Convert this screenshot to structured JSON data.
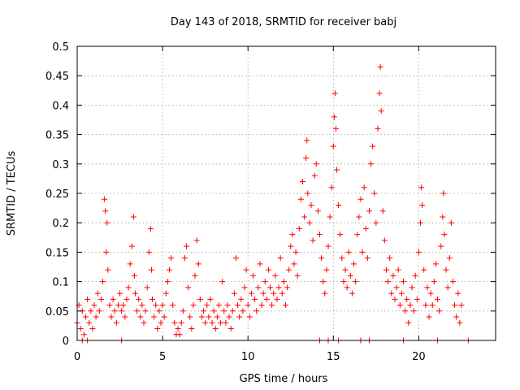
{
  "chart_data": {
    "type": "scatter",
    "title": "Day 143 of 2018, SRMTID for receiver babj",
    "xlabel": "GPS time / hours",
    "ylabel": "SRMTID / TECUs",
    "xlim": [
      0,
      24.5
    ],
    "ylim": [
      0,
      0.5
    ],
    "grid": true,
    "marker": "+",
    "series_color": "#ff0000",
    "x_ticks": [
      {
        "value": 0,
        "label": "0"
      },
      {
        "value": 5,
        "label": "5"
      },
      {
        "value": 10,
        "label": "10"
      },
      {
        "value": 15,
        "label": "15"
      },
      {
        "value": 20,
        "label": "20"
      }
    ],
    "y_ticks": [
      {
        "value": 0,
        "label": "0"
      },
      {
        "value": 0.05,
        "label": "0.05"
      },
      {
        "value": 0.1,
        "label": "0.1"
      },
      {
        "value": 0.15,
        "label": "0.15"
      },
      {
        "value": 0.2,
        "label": "0.2"
      },
      {
        "value": 0.25,
        "label": "0.25"
      },
      {
        "value": 0.3,
        "label": "0.3"
      },
      {
        "value": 0.35,
        "label": "0.35"
      },
      {
        "value": 0.4,
        "label": "0.4"
      },
      {
        "value": 0.45,
        "label": "0.45"
      },
      {
        "value": 0.5,
        "label": "0.5"
      }
    ],
    "series": [
      {
        "name": "SRMTID",
        "points": [
          [
            0.0,
            0.03
          ],
          [
            0.1,
            0.06
          ],
          [
            0.2,
            0.02
          ],
          [
            0.3,
            0.05
          ],
          [
            0.4,
            0.01
          ],
          [
            0.5,
            0.04
          ],
          [
            0.6,
            0.07
          ],
          [
            0.7,
            0.03
          ],
          [
            0.8,
            0.05
          ],
          [
            0.9,
            0.02
          ],
          [
            1.0,
            0.06
          ],
          [
            1.1,
            0.04
          ],
          [
            1.2,
            0.08
          ],
          [
            1.3,
            0.05
          ],
          [
            1.4,
            0.07
          ],
          [
            1.5,
            0.1
          ],
          [
            1.6,
            0.24
          ],
          [
            1.65,
            0.22
          ],
          [
            1.7,
            0.15
          ],
          [
            1.75,
            0.2
          ],
          [
            1.8,
            0.12
          ],
          [
            1.9,
            0.06
          ],
          [
            2.0,
            0.04
          ],
          [
            2.1,
            0.07
          ],
          [
            2.2,
            0.05
          ],
          [
            2.3,
            0.03
          ],
          [
            2.4,
            0.06
          ],
          [
            2.5,
            0.08
          ],
          [
            2.6,
            0.05
          ],
          [
            2.7,
            0.06
          ],
          [
            2.8,
            0.04
          ],
          [
            2.9,
            0.07
          ],
          [
            3.0,
            0.09
          ],
          [
            3.1,
            0.13
          ],
          [
            3.2,
            0.16
          ],
          [
            3.3,
            0.21
          ],
          [
            3.35,
            0.11
          ],
          [
            3.4,
            0.08
          ],
          [
            3.5,
            0.05
          ],
          [
            3.6,
            0.07
          ],
          [
            3.7,
            0.04
          ],
          [
            3.8,
            0.06
          ],
          [
            3.9,
            0.03
          ],
          [
            4.0,
            0.05
          ],
          [
            4.1,
            0.09
          ],
          [
            4.2,
            0.15
          ],
          [
            4.3,
            0.19
          ],
          [
            4.35,
            0.12
          ],
          [
            4.4,
            0.07
          ],
          [
            4.5,
            0.04
          ],
          [
            4.6,
            0.06
          ],
          [
            4.7,
            0.02
          ],
          [
            4.8,
            0.05
          ],
          [
            4.9,
            0.03
          ],
          [
            5.0,
            0.06
          ],
          [
            5.1,
            0.04
          ],
          [
            5.2,
            0.08
          ],
          [
            5.3,
            0.1
          ],
          [
            5.4,
            0.12
          ],
          [
            5.5,
            0.14
          ],
          [
            5.6,
            0.06
          ],
          [
            5.7,
            0.03
          ],
          [
            5.8,
            0.01
          ],
          [
            5.9,
            0.02
          ],
          [
            6.0,
            0.01
          ],
          [
            6.1,
            0.03
          ],
          [
            6.2,
            0.05
          ],
          [
            6.3,
            0.14
          ],
          [
            6.4,
            0.16
          ],
          [
            6.5,
            0.09
          ],
          [
            6.6,
            0.04
          ],
          [
            6.7,
            0.02
          ],
          [
            6.8,
            0.06
          ],
          [
            6.9,
            0.11
          ],
          [
            7.0,
            0.17
          ],
          [
            7.1,
            0.13
          ],
          [
            7.2,
            0.07
          ],
          [
            7.3,
            0.04
          ],
          [
            7.4,
            0.05
          ],
          [
            7.5,
            0.03
          ],
          [
            7.6,
            0.06
          ],
          [
            7.7,
            0.04
          ],
          [
            7.8,
            0.07
          ],
          [
            7.9,
            0.03
          ],
          [
            8.0,
            0.05
          ],
          [
            8.1,
            0.02
          ],
          [
            8.2,
            0.04
          ],
          [
            8.3,
            0.06
          ],
          [
            8.4,
            0.03
          ],
          [
            8.5,
            0.1
          ],
          [
            8.6,
            0.05
          ],
          [
            8.7,
            0.03
          ],
          [
            8.8,
            0.06
          ],
          [
            8.9,
            0.04
          ],
          [
            9.0,
            0.02
          ],
          [
            9.1,
            0.05
          ],
          [
            9.2,
            0.08
          ],
          [
            9.3,
            0.14
          ],
          [
            9.4,
            0.06
          ],
          [
            9.5,
            0.04
          ],
          [
            9.6,
            0.07
          ],
          [
            9.7,
            0.05
          ],
          [
            9.8,
            0.09
          ],
          [
            9.9,
            0.12
          ],
          [
            10.0,
            0.06
          ],
          [
            10.1,
            0.04
          ],
          [
            10.2,
            0.08
          ],
          [
            10.3,
            0.11
          ],
          [
            10.4,
            0.07
          ],
          [
            10.5,
            0.05
          ],
          [
            10.6,
            0.09
          ],
          [
            10.7,
            0.13
          ],
          [
            10.8,
            0.06
          ],
          [
            10.9,
            0.08
          ],
          [
            11.0,
            0.1
          ],
          [
            11.1,
            0.07
          ],
          [
            11.2,
            0.12
          ],
          [
            11.3,
            0.09
          ],
          [
            11.4,
            0.06
          ],
          [
            11.5,
            0.08
          ],
          [
            11.6,
            0.11
          ],
          [
            11.7,
            0.07
          ],
          [
            11.8,
            0.09
          ],
          [
            11.9,
            0.14
          ],
          [
            12.0,
            0.08
          ],
          [
            12.1,
            0.1
          ],
          [
            12.2,
            0.06
          ],
          [
            12.3,
            0.09
          ],
          [
            12.4,
            0.12
          ],
          [
            12.5,
            0.16
          ],
          [
            12.6,
            0.18
          ],
          [
            12.7,
            0.13
          ],
          [
            12.8,
            0.15
          ],
          [
            12.9,
            0.11
          ],
          [
            13.0,
            0.19
          ],
          [
            13.1,
            0.24
          ],
          [
            13.2,
            0.27
          ],
          [
            13.3,
            0.21
          ],
          [
            13.4,
            0.31
          ],
          [
            13.45,
            0.34
          ],
          [
            13.5,
            0.25
          ],
          [
            13.6,
            0.2
          ],
          [
            13.7,
            0.23
          ],
          [
            13.8,
            0.17
          ],
          [
            13.9,
            0.28
          ],
          [
            14.0,
            0.3
          ],
          [
            14.1,
            0.22
          ],
          [
            14.2,
            0.18
          ],
          [
            14.3,
            0.14
          ],
          [
            14.4,
            0.1
          ],
          [
            14.5,
            0.08
          ],
          [
            14.6,
            0.12
          ],
          [
            14.7,
            0.16
          ],
          [
            14.8,
            0.21
          ],
          [
            14.9,
            0.26
          ],
          [
            15.0,
            0.33
          ],
          [
            15.05,
            0.38
          ],
          [
            15.1,
            0.42
          ],
          [
            15.15,
            0.36
          ],
          [
            15.2,
            0.29
          ],
          [
            15.3,
            0.23
          ],
          [
            15.4,
            0.18
          ],
          [
            15.5,
            0.14
          ],
          [
            15.6,
            0.1
          ],
          [
            15.7,
            0.12
          ],
          [
            15.8,
            0.09
          ],
          [
            15.9,
            0.15
          ],
          [
            16.0,
            0.11
          ],
          [
            16.1,
            0.08
          ],
          [
            16.2,
            0.13
          ],
          [
            16.3,
            0.1
          ],
          [
            16.4,
            0.18
          ],
          [
            16.5,
            0.21
          ],
          [
            16.6,
            0.24
          ],
          [
            16.7,
            0.15
          ],
          [
            16.8,
            0.26
          ],
          [
            16.9,
            0.19
          ],
          [
            17.0,
            0.14
          ],
          [
            17.1,
            0.22
          ],
          [
            17.2,
            0.3
          ],
          [
            17.3,
            0.33
          ],
          [
            17.4,
            0.25
          ],
          [
            17.5,
            0.2
          ],
          [
            17.6,
            0.36
          ],
          [
            17.7,
            0.42
          ],
          [
            17.75,
            0.465
          ],
          [
            17.8,
            0.39
          ],
          [
            17.9,
            0.22
          ],
          [
            18.0,
            0.17
          ],
          [
            18.1,
            0.12
          ],
          [
            18.2,
            0.1
          ],
          [
            18.3,
            0.14
          ],
          [
            18.4,
            0.08
          ],
          [
            18.5,
            0.11
          ],
          [
            18.6,
            0.07
          ],
          [
            18.7,
            0.09
          ],
          [
            18.8,
            0.12
          ],
          [
            18.9,
            0.06
          ],
          [
            19.0,
            0.08
          ],
          [
            19.1,
            0.1
          ],
          [
            19.2,
            0.05
          ],
          [
            19.3,
            0.07
          ],
          [
            19.4,
            0.03
          ],
          [
            19.5,
            0.06
          ],
          [
            19.6,
            0.09
          ],
          [
            19.7,
            0.05
          ],
          [
            19.8,
            0.11
          ],
          [
            19.9,
            0.07
          ],
          [
            20.0,
            0.15
          ],
          [
            20.1,
            0.2
          ],
          [
            20.15,
            0.26
          ],
          [
            20.2,
            0.23
          ],
          [
            20.3,
            0.12
          ],
          [
            20.4,
            0.06
          ],
          [
            20.5,
            0.09
          ],
          [
            20.6,
            0.04
          ],
          [
            20.7,
            0.08
          ],
          [
            20.8,
            0.06
          ],
          [
            20.9,
            0.1
          ],
          [
            21.0,
            0.13
          ],
          [
            21.1,
            0.07
          ],
          [
            21.2,
            0.05
          ],
          [
            21.3,
            0.16
          ],
          [
            21.4,
            0.21
          ],
          [
            21.45,
            0.25
          ],
          [
            21.5,
            0.18
          ],
          [
            21.6,
            0.12
          ],
          [
            21.7,
            0.09
          ],
          [
            21.8,
            0.14
          ],
          [
            21.9,
            0.2
          ],
          [
            22.0,
            0.1
          ],
          [
            22.1,
            0.06
          ],
          [
            22.2,
            0.04
          ],
          [
            22.3,
            0.08
          ],
          [
            22.4,
            0.03
          ],
          [
            22.5,
            0.06
          ],
          [
            0.3,
            0.0
          ],
          [
            0.6,
            0.0
          ],
          [
            2.6,
            0.0
          ],
          [
            14.2,
            0.0
          ],
          [
            14.7,
            0.0
          ],
          [
            15.3,
            0.0
          ],
          [
            16.6,
            0.0
          ],
          [
            17.1,
            0.0
          ],
          [
            19.1,
            0.0
          ],
          [
            21.1,
            0.0
          ],
          [
            22.9,
            0.0
          ]
        ]
      }
    ]
  }
}
